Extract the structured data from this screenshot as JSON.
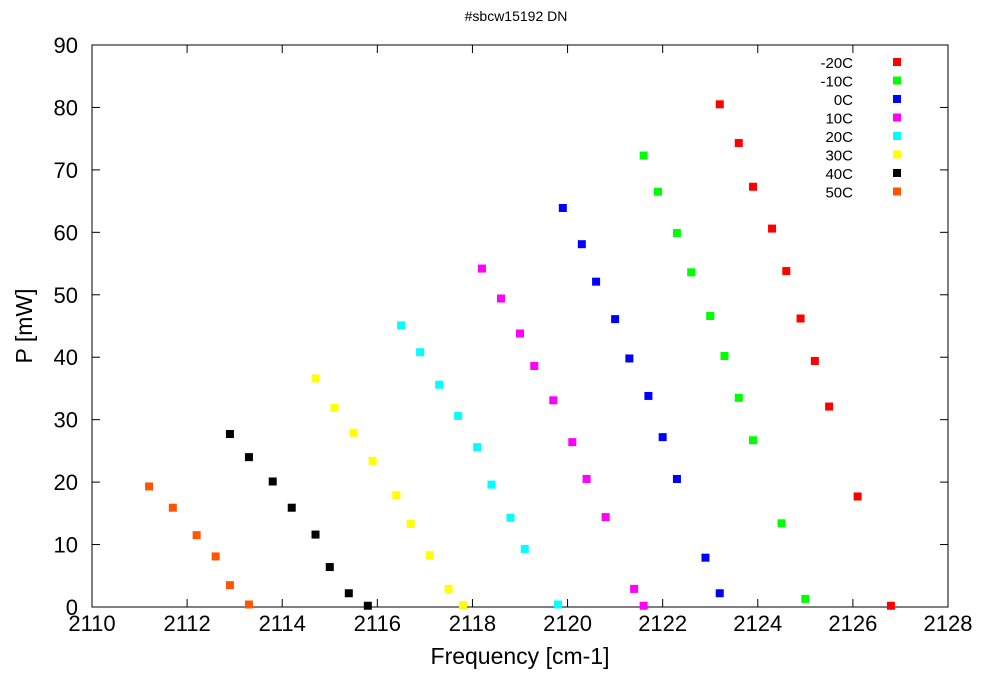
{
  "chart_data": {
    "type": "scatter",
    "title": "#sbcw15192 DN",
    "xlabel": "Frequency [cm-1]",
    "ylabel": "P [mW]",
    "xlim": [
      2110,
      2128
    ],
    "ylim": [
      0,
      90
    ],
    "xticks": [
      "2110",
      "2112",
      "2114",
      "2116",
      "2118",
      "2120",
      "2122",
      "2124",
      "2126",
      "2128"
    ],
    "yticks": [
      "0",
      "10",
      "20",
      "30",
      "40",
      "50",
      "60",
      "70",
      "80",
      "90"
    ],
    "legend_position": "top-right",
    "grid": false,
    "series": [
      {
        "name": "-20C",
        "color": "#ff0000",
        "x": [
          2123.2,
          2123.6,
          2123.9,
          2124.3,
          2124.6,
          2124.9,
          2125.2,
          2125.5,
          2126.1,
          2126.8
        ],
        "y": [
          80.5,
          74.3,
          67.3,
          60.6,
          53.8,
          46.2,
          39.4,
          32.1,
          17.7,
          0.2
        ]
      },
      {
        "name": "-10C",
        "color": "#00ff00",
        "x": [
          2121.6,
          2121.9,
          2122.3,
          2122.6,
          2123.0,
          2123.3,
          2123.6,
          2123.9,
          2124.5,
          2125.0
        ],
        "y": [
          72.3,
          66.5,
          59.9,
          53.6,
          46.6,
          40.2,
          33.5,
          26.7,
          13.4,
          1.3
        ]
      },
      {
        "name": "0C",
        "color": "#0000ff",
        "x": [
          2119.9,
          2120.3,
          2120.6,
          2121.0,
          2121.3,
          2121.7,
          2122.0,
          2122.3,
          2122.9,
          2123.2
        ],
        "y": [
          63.9,
          58.1,
          52.1,
          46.1,
          39.8,
          33.8,
          27.2,
          20.5,
          7.9,
          2.2
        ]
      },
      {
        "name": "10C",
        "color": "#ff00ff",
        "x": [
          2118.2,
          2118.6,
          2119.0,
          2119.3,
          2119.7,
          2120.1,
          2120.4,
          2120.8,
          2121.4,
          2121.6
        ],
        "y": [
          54.2,
          49.4,
          43.8,
          38.6,
          33.1,
          26.4,
          20.5,
          14.4,
          2.9,
          0.2
        ]
      },
      {
        "name": "20C",
        "color": "#00ffff",
        "x": [
          2116.5,
          2116.9,
          2117.3,
          2117.7,
          2118.1,
          2118.4,
          2118.8,
          2119.1,
          2119.8
        ],
        "y": [
          45.1,
          40.8,
          35.6,
          30.6,
          25.6,
          19.6,
          14.3,
          9.3,
          0.4
        ]
      },
      {
        "name": "30C",
        "color": "#ffff00",
        "x": [
          2114.7,
          2115.1,
          2115.5,
          2115.9,
          2116.4,
          2116.7,
          2117.1,
          2117.5,
          2117.8
        ],
        "y": [
          36.6,
          31.9,
          27.9,
          23.4,
          17.9,
          13.3,
          8.3,
          2.9,
          0.3
        ]
      },
      {
        "name": "40C",
        "color": "#000000",
        "x": [
          2112.9,
          2113.3,
          2113.8,
          2114.2,
          2114.7,
          2115.0,
          2115.4,
          2115.8
        ],
        "y": [
          27.7,
          24.0,
          20.1,
          15.9,
          11.6,
          6.4,
          2.2,
          0.2
        ]
      },
      {
        "name": "50C",
        "color": "#ff5500",
        "x": [
          2111.2,
          2111.7,
          2112.2,
          2112.6,
          2112.9,
          2113.3
        ],
        "y": [
          19.3,
          15.9,
          11.5,
          8.1,
          3.5,
          0.4
        ]
      }
    ]
  }
}
